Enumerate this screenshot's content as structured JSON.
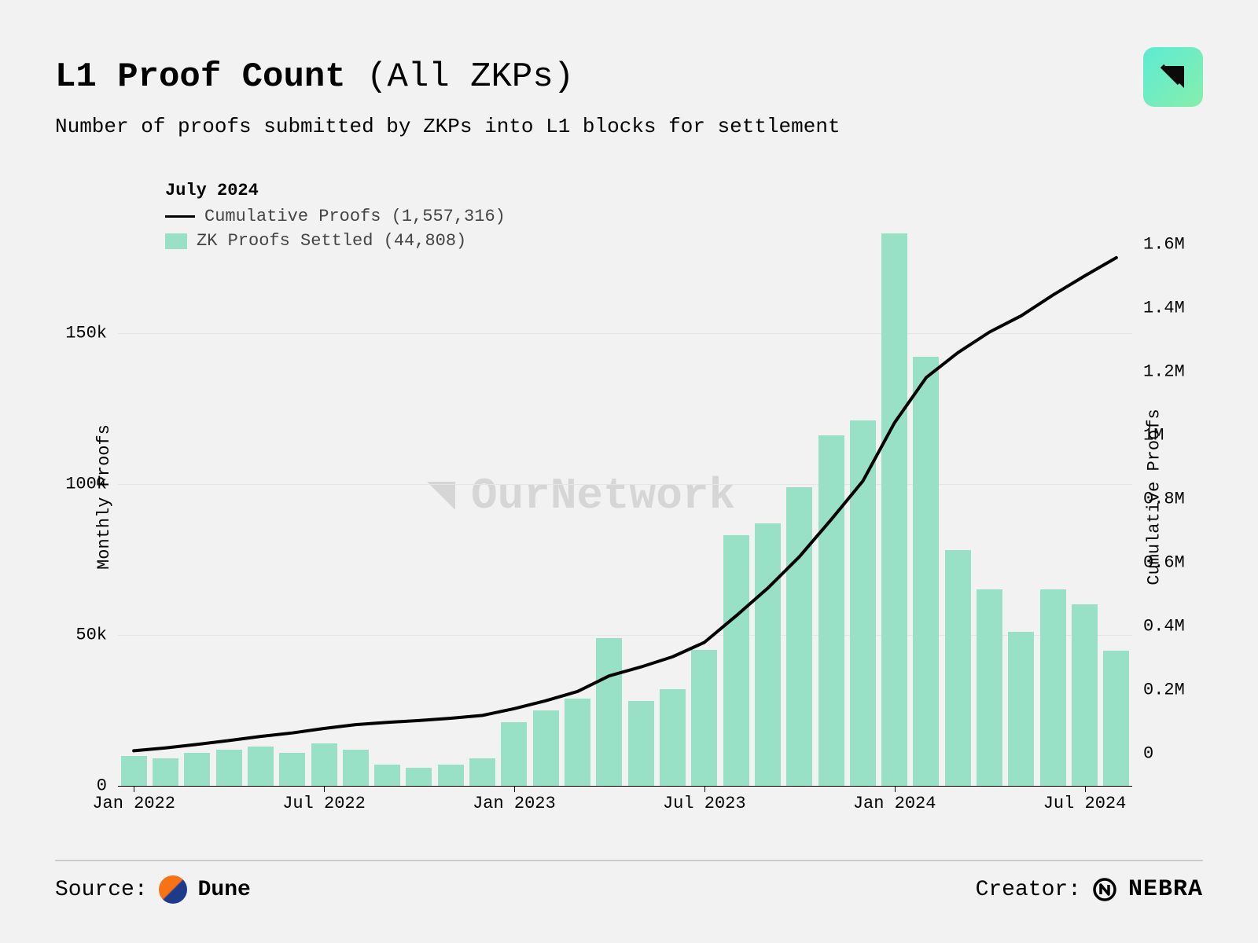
{
  "header": {
    "title_main": "L1 Proof Count",
    "title_sub": "(All ZKPs)",
    "subtitle": "Number of proofs submitted by ZKPs into L1 blocks for settlement"
  },
  "legend": {
    "title": "July 2024",
    "cumulative_label": "Cumulative Proofs (1,557,316)",
    "settled_label": "ZK Proofs Settled (44,808)"
  },
  "chart": {
    "type": "bar+line",
    "background_color": "#f2f2f2",
    "grid_color": "#e5e5e5",
    "bar_color": "#98e0c6",
    "line_color": "#000000",
    "line_width": 4,
    "bar_gap_ratio": 0.18,
    "left_axis": {
      "title": "Monthly Proofs",
      "min": 0,
      "max": 190000,
      "ticks": [
        0,
        50000,
        100000,
        150000
      ],
      "tick_labels": [
        "0",
        "50k",
        "100k",
        "150k"
      ]
    },
    "right_axis": {
      "title": "Cumulative Proofs",
      "min": -100000,
      "max": 1700000,
      "ticks": [
        0,
        200000,
        400000,
        600000,
        800000,
        1000000,
        1200000,
        1400000,
        1600000
      ],
      "tick_labels": [
        "0",
        "0.2M",
        "0.4M",
        "0.6M",
        "0.8M",
        "1M",
        "1.2M",
        "1.4M",
        "1.6M"
      ]
    },
    "x_labels": [
      {
        "idx": 0,
        "text": "Jan 2022"
      },
      {
        "idx": 6,
        "text": "Jul 2022"
      },
      {
        "idx": 12,
        "text": "Jan 2023"
      },
      {
        "idx": 18,
        "text": "Jul 2023"
      },
      {
        "idx": 24,
        "text": "Jan 2024"
      },
      {
        "idx": 30,
        "text": "Jul 2024"
      }
    ],
    "bars": [
      10000,
      9000,
      11000,
      12000,
      13000,
      11000,
      14000,
      12000,
      7000,
      6000,
      7000,
      9000,
      21000,
      25000,
      29000,
      49000,
      28000,
      32000,
      45000,
      83000,
      87000,
      99000,
      116000,
      121000,
      183000,
      142000,
      78000,
      65000,
      51000,
      65000,
      60000,
      44808
    ],
    "cumulative": [
      10000,
      19000,
      30000,
      42000,
      55000,
      66000,
      80000,
      92000,
      99000,
      105000,
      112000,
      121000,
      142000,
      167000,
      196000,
      245000,
      273000,
      305000,
      350000,
      433000,
      520000,
      619000,
      735000,
      856000,
      1039000,
      1181000,
      1259000,
      1324000,
      1375000,
      1440000,
      1500000,
      1557316
    ]
  },
  "watermark": {
    "text": "OurNetwork"
  },
  "footer": {
    "source_label": "Source:",
    "source_name": "Dune",
    "creator_label": "Creator:",
    "creator_name": "NEBRA"
  }
}
